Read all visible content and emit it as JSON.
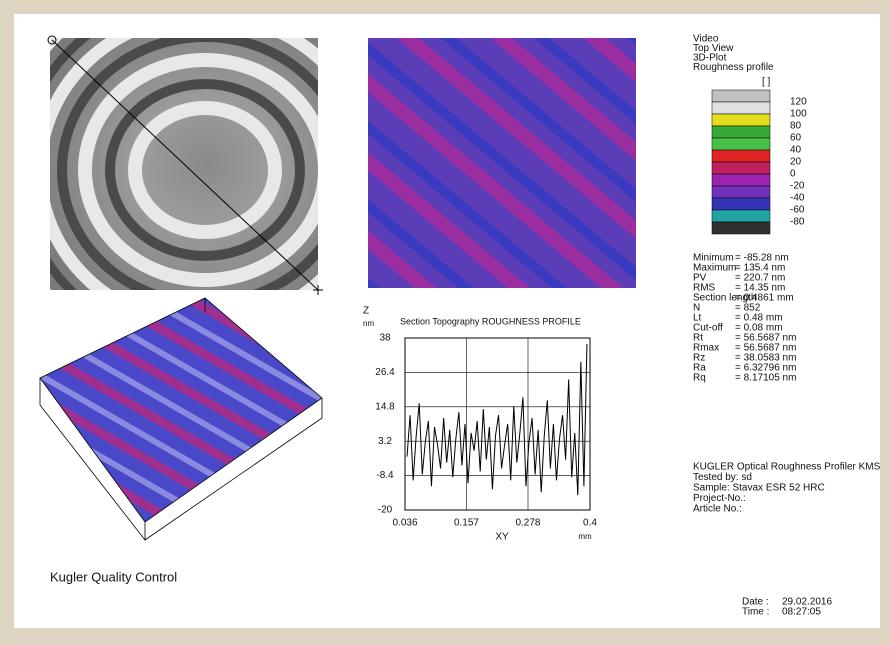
{
  "menu": [
    "Video",
    "Top View",
    "3D-Plot",
    "Roughness profile"
  ],
  "colorbar": {
    "unit": "[ ]",
    "labels": [
      "120",
      "100",
      "80",
      "60",
      "40",
      "20",
      "0",
      "-20",
      "-40",
      "-60",
      "-80"
    ]
  },
  "stats": [
    {
      "label": "Minimum",
      "value": "= -85.28 nm"
    },
    {
      "label": "Maximum",
      "value": "= 135.4 nm"
    },
    {
      "label": "PV",
      "value": "= 220.7 nm"
    },
    {
      "label": "RMS",
      "value": "= 14.35 nm"
    },
    {
      "label": "Section length",
      "value": "= 0.4861 mm"
    },
    {
      "label": "N",
      "value": "= 852"
    },
    {
      "label": "Lt",
      "value": "=   0.48 mm"
    },
    {
      "label": "Cut-off",
      "value": "=   0.08 mm"
    },
    {
      "label": "Rt",
      "value": "= 56.5687 nm"
    },
    {
      "label": "Rmax",
      "value": "= 56.5687 nm"
    },
    {
      "label": "Rz",
      "value": "= 38.0583 nm"
    },
    {
      "label": "Ra",
      "value": "= 6.32796 nm"
    },
    {
      "label": "Rq",
      "value": "= 8.17105 nm"
    }
  ],
  "profile_chart": {
    "type": "line",
    "title": "Section Topography ROUGHNESS PROFILE",
    "y_label": "Z",
    "y_unit": "nm",
    "x_label": "XY",
    "x_unit": "mm",
    "color": "#000000",
    "grid": true,
    "xlim": [
      0.036,
      0.4
    ],
    "xticks": [
      0.036,
      0.157,
      0.278,
      0.4
    ],
    "ylim": [
      -20,
      38
    ],
    "yticks": [
      38,
      26.4,
      14.8,
      3.2,
      -8.4,
      -20
    ],
    "x": [
      0.04,
      0.046,
      0.052,
      0.058,
      0.064,
      0.07,
      0.076,
      0.082,
      0.088,
      0.094,
      0.1,
      0.106,
      0.112,
      0.118,
      0.124,
      0.13,
      0.136,
      0.142,
      0.148,
      0.154,
      0.16,
      0.166,
      0.172,
      0.178,
      0.184,
      0.19,
      0.196,
      0.202,
      0.208,
      0.214,
      0.22,
      0.226,
      0.232,
      0.238,
      0.244,
      0.25,
      0.256,
      0.262,
      0.268,
      0.274,
      0.28,
      0.286,
      0.292,
      0.298,
      0.304,
      0.31,
      0.316,
      0.322,
      0.328,
      0.334,
      0.34,
      0.346,
      0.352,
      0.358,
      0.364,
      0.37,
      0.376,
      0.382,
      0.388,
      0.394
    ],
    "values": [
      -2,
      12,
      -10,
      5,
      16,
      -8,
      3,
      10,
      -12,
      8,
      2,
      -6,
      11,
      -4,
      7,
      -9,
      4,
      13,
      -5,
      9,
      -11,
      6,
      0,
      10,
      -7,
      14,
      -3,
      8,
      -13,
      5,
      12,
      -6,
      2,
      9,
      -10,
      15,
      -4,
      6,
      18,
      -12,
      3,
      11,
      -8,
      7,
      -14,
      5,
      17,
      -6,
      9,
      -10,
      4,
      12,
      -3,
      24,
      -9,
      6,
      -15,
      30,
      -12,
      36
    ]
  },
  "info": [
    "KUGLER Optical Roughness Profiler KMS",
    "Tested by: sd",
    "Sample: Stavax ESR 52 HRC",
    "Project-No.:",
    "Article No.:"
  ],
  "footer": {
    "company": "Kugler Quality Control",
    "date_label": "Date :",
    "date": "29.02.2016",
    "time_label": "Time :",
    "time": "08:27:05"
  }
}
